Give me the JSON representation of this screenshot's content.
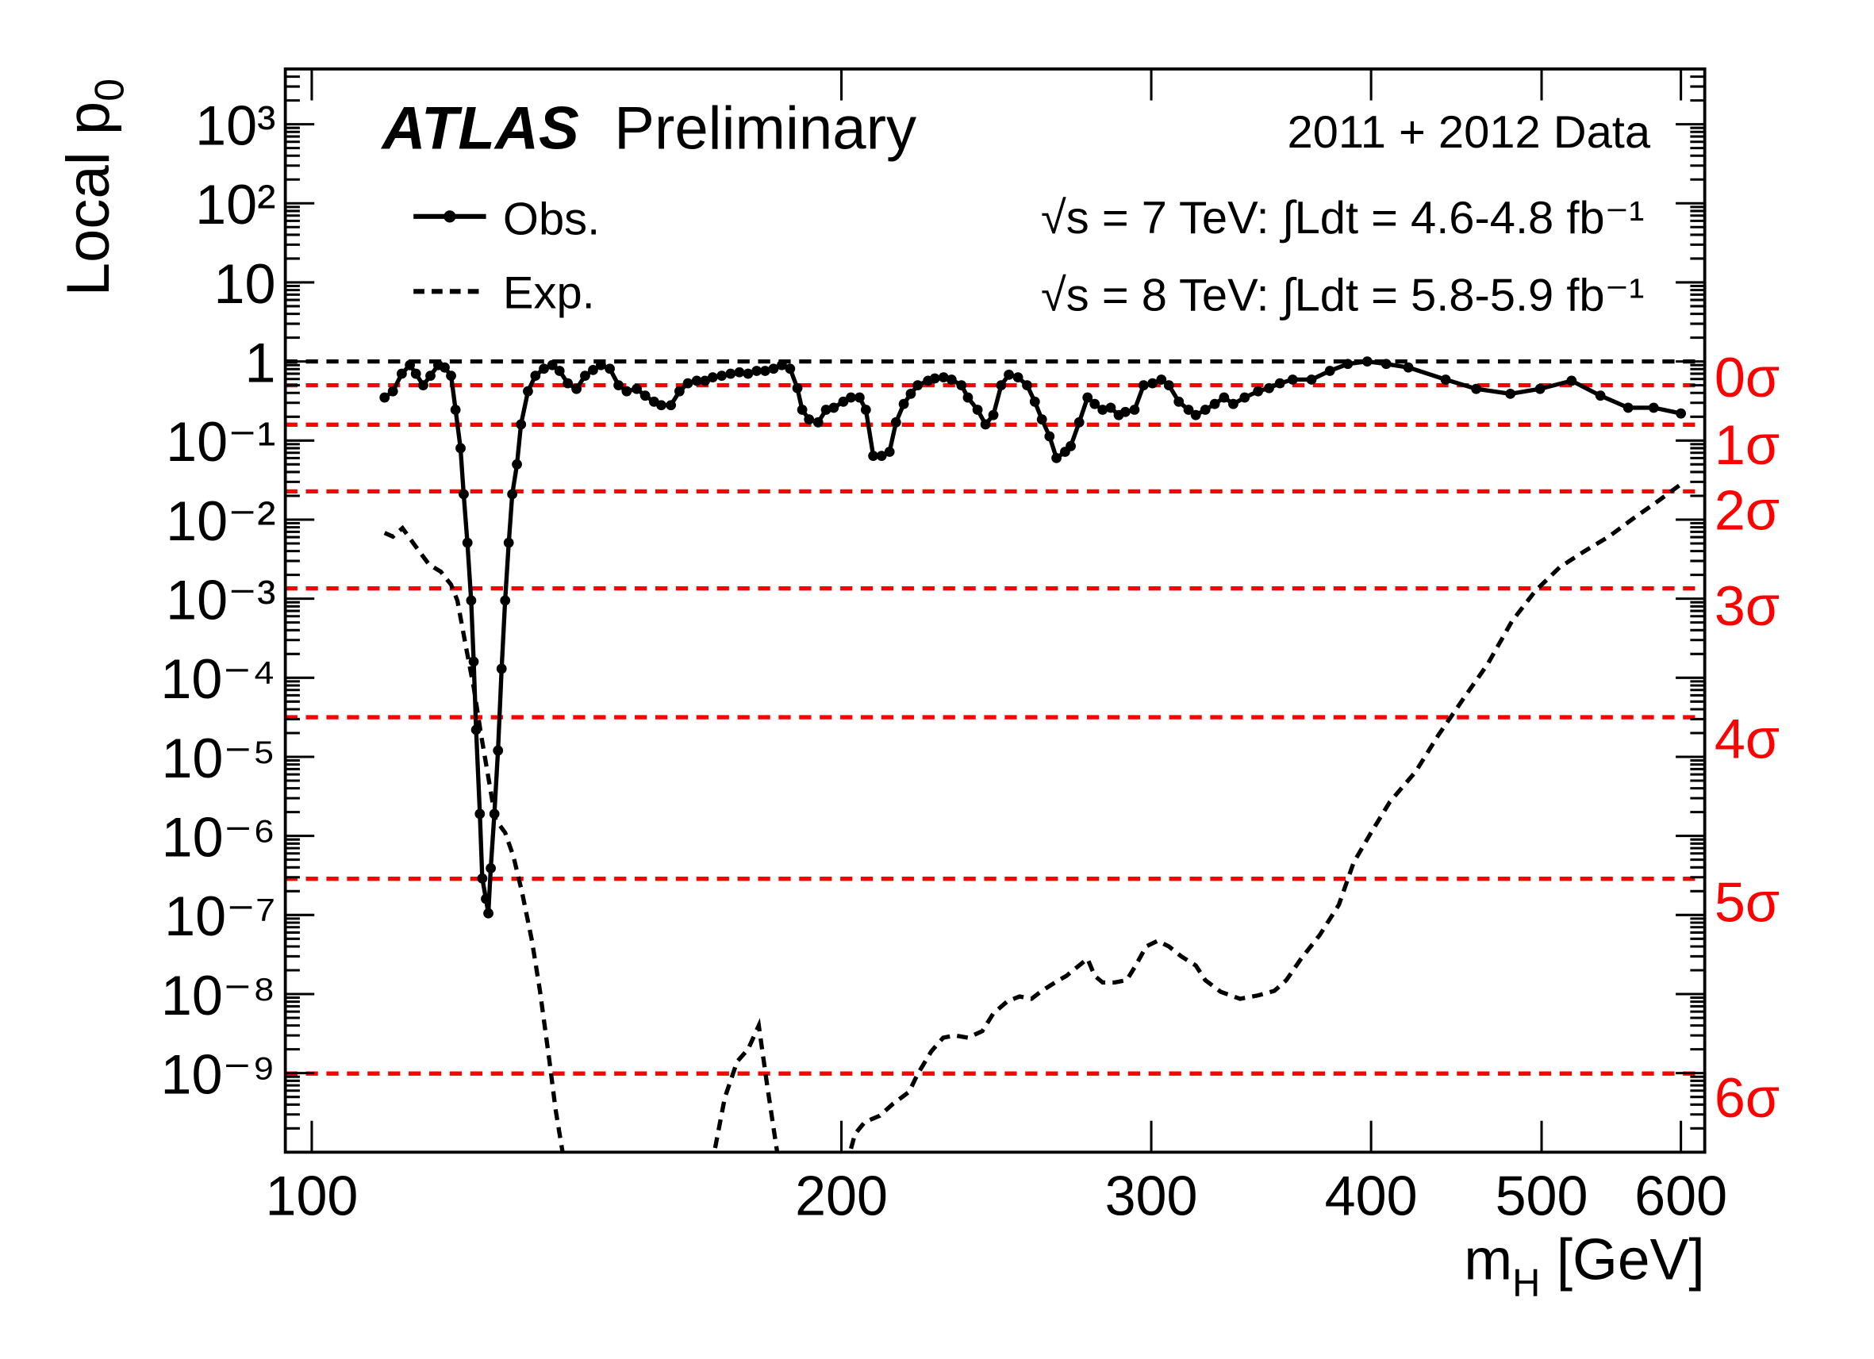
{
  "chart_data": {
    "type": "line",
    "title": "",
    "header": {
      "experiment": "ATLAS",
      "status": "Preliminary",
      "dataset": "2011 + 2012 Data",
      "lumi_7": "√s = 7 TeV: ∫Ldt = 4.6-4.8 fb⁻¹",
      "lumi_8": "√s = 8 TeV: ∫Ldt = 5.8-5.9 fb⁻¹"
    },
    "xlabel": "m_H [GeV]",
    "xlabel_main": "m",
    "xlabel_sub": "H",
    "xlabel_unit": " [GeV]",
    "ylabel_main": "Local p",
    "ylabel_sub": "0",
    "xscale": "log",
    "yscale": "log",
    "xlim": [
      96.6,
      619
    ],
    "ylim": [
      1e-10,
      5000
    ],
    "grid": false,
    "legend_placement": "top-left",
    "x_ticks": [
      100,
      200,
      300,
      400,
      500,
      600
    ],
    "x_tick_labels": [
      "100",
      "200",
      "300",
      "400",
      "500",
      "600"
    ],
    "y_ticks": [
      1000,
      100,
      10,
      1,
      0.1,
      0.01,
      0.001,
      0.0001,
      1e-05,
      1e-06,
      1e-07,
      1e-08,
      1e-09
    ],
    "y_tick_labels": [
      "10³",
      "10²",
      "10",
      "1",
      "10⁻¹",
      "10⁻²",
      "10⁻³",
      "10⁻⁴",
      "10⁻⁵",
      "10⁻⁶",
      "10⁻⁷",
      "10⁻⁸",
      "10⁻⁹"
    ],
    "reference_lines": [
      {
        "label": "",
        "p": 1,
        "color": "#000000"
      },
      {
        "label": "0σ",
        "p": 0.5,
        "color": "#ff0000"
      },
      {
        "label": "1σ",
        "p": 0.1587,
        "color": "#ff0000"
      },
      {
        "label": "2σ",
        "p": 0.02275,
        "color": "#ff0000"
      },
      {
        "label": "3σ",
        "p": 0.00135,
        "color": "#ff0000"
      },
      {
        "label": "4σ",
        "p": 3.17e-05,
        "color": "#ff0000"
      },
      {
        "label": "5σ",
        "p": 2.87e-07,
        "color": "#ff0000"
      },
      {
        "label": "6σ",
        "p": 9.87e-10,
        "color": "#ff0000"
      }
    ],
    "series": [
      {
        "name": "Obs.",
        "style": "solid-markers",
        "color": "#000000",
        "x": [
          110,
          111.2,
          112.5,
          113.7,
          114.6,
          115.7,
          116.8,
          118,
          119,
          120,
          120.7,
          121.5,
          122,
          122.6,
          123.2,
          123.6,
          124,
          124.6,
          125,
          125.6,
          126,
          126.4,
          127,
          127.6,
          128.2,
          128.8,
          129.4,
          130,
          130.8,
          131.5,
          132.7,
          134,
          135.5,
          137,
          138.3,
          139.8,
          141.4,
          143,
          144.5,
          146,
          147.7,
          149.4,
          151,
          153,
          154.7,
          156.5,
          158,
          160,
          161.8,
          163.6,
          165.5,
          167.3,
          169,
          171,
          173,
          175,
          177,
          179,
          181,
          183,
          185,
          187,
          188.8,
          190,
          191.7,
          194,
          196,
          198,
          200.5,
          202.5,
          204.8,
          206.5,
          208.5,
          210.8,
          213,
          214.8,
          217,
          219,
          221,
          224,
          226,
          228.6,
          231,
          234,
          236,
          239,
          241.5,
          244,
          246.5,
          249,
          252,
          255,
          257.6,
          260,
          262.6,
          265,
          268,
          270,
          273,
          276,
          278.6,
          281.5,
          284.5,
          287.5,
          290,
          293.5,
          297,
          300.5,
          304,
          307,
          311,
          315,
          318,
          322,
          326,
          330,
          334,
          339,
          345,
          350,
          355,
          361,
          370,
          379,
          388,
          398,
          408,
          420,
          441,
          459,
          480,
          499,
          520,
          540,
          560,
          579,
          600
        ],
        "y": [
          0.35,
          0.42,
          0.7,
          0.9,
          0.7,
          0.5,
          0.66,
          0.9,
          0.84,
          0.66,
          0.245,
          0.08,
          0.021,
          0.0051,
          0.00095,
          0.00016,
          2.2e-05,
          1.9e-06,
          2.9e-07,
          1.6e-07,
          1.05e-07,
          3.9e-07,
          1.9e-06,
          1.2e-05,
          0.00013,
          0.00095,
          0.0051,
          0.021,
          0.05,
          0.16,
          0.42,
          0.66,
          0.81,
          0.9,
          0.76,
          0.53,
          0.45,
          0.66,
          0.78,
          0.9,
          0.81,
          0.5,
          0.42,
          0.45,
          0.37,
          0.31,
          0.28,
          0.28,
          0.42,
          0.53,
          0.57,
          0.57,
          0.63,
          0.66,
          0.7,
          0.73,
          0.7,
          0.76,
          0.76,
          0.81,
          0.9,
          0.81,
          0.46,
          0.245,
          0.185,
          0.17,
          0.245,
          0.26,
          0.31,
          0.35,
          0.35,
          0.245,
          0.064,
          0.064,
          0.072,
          0.17,
          0.29,
          0.39,
          0.5,
          0.57,
          0.61,
          0.63,
          0.59,
          0.5,
          0.35,
          0.245,
          0.16,
          0.21,
          0.5,
          0.68,
          0.63,
          0.5,
          0.31,
          0.185,
          0.113,
          0.06,
          0.072,
          0.085,
          0.17,
          0.35,
          0.29,
          0.245,
          0.26,
          0.21,
          0.23,
          0.245,
          0.5,
          0.53,
          0.59,
          0.5,
          0.31,
          0.245,
          0.21,
          0.245,
          0.29,
          0.35,
          0.29,
          0.35,
          0.42,
          0.46,
          0.53,
          0.59,
          0.59,
          0.76,
          0.93,
          1.0,
          0.93,
          0.84,
          0.59,
          0.45,
          0.39,
          0.45,
          0.57,
          0.37,
          0.26,
          0.26,
          0.22
        ]
      },
      {
        "name": "Exp.",
        "style": "dashed",
        "color": "#000000",
        "segments": [
          {
            "x": [
              110,
              111.2,
              112.6,
              114.8,
              116.6,
              118.4,
              120,
              121,
              122.3,
              123.6,
              124.8,
              126.2,
              127.2,
              128.8,
              130.2,
              131.7,
              133.4,
              134.8,
              136.5,
              137.6,
              139.8
            ],
            "y": [
              0.0068,
              0.0061,
              0.0078,
              0.0043,
              0.0027,
              0.0022,
              0.0015,
              0.00095,
              0.00026,
              7.6e-05,
              1.9e-05,
              4.5e-06,
              1.6e-06,
              1.1e-06,
              5.5e-07,
              1.9e-07,
              4.7e-08,
              1.1e-08,
              1.4e-09,
              3.4e-10,
              4e-11
            ]
          },
          {
            "x": [
              168,
              171.7,
              174.5,
              177,
              179.5,
              181.5,
              185
            ],
            "y": [
              4e-11,
              4.9e-10,
              1.4e-09,
              2e-09,
              4e-09,
              6.9e-10,
              4e-11
            ]
          },
          {
            "x": [
              200,
              203.6,
              206.2,
              210.3,
              214,
              218.5,
              221,
              225,
              228.5,
              232,
              236,
              240.5,
              244,
              248.5,
              252.5,
              256.5,
              260,
              264.5,
              268.5,
              273,
              276,
              278.6,
              281.5,
              286,
              290.5,
              294,
              298,
              302.5,
              307,
              312,
              318,
              322,
              328.5,
              337,
              345,
              352.5,
              358,
              365,
              374,
              383.5,
              391,
              400,
              410,
              424,
              437,
              451,
              466,
              481,
              496,
              512,
              529,
              546,
              564,
              583,
              600
            ],
            "y": [
              4e-11,
              1.7e-10,
              2.4e-10,
              2.9e-10,
              4.1e-10,
              5.8e-10,
              9.8e-10,
              1.9e-09,
              2.8e-09,
              3e-09,
              2.8e-09,
              3.4e-09,
              5.7e-09,
              8.1e-09,
              9.3e-09,
              8.7e-09,
              1.1e-08,
              1.4e-08,
              1.7e-08,
              2.3e-08,
              2.8e-08,
              1.7e-08,
              1.4e-08,
              1.4e-08,
              1.5e-08,
              2.3e-08,
              4e-08,
              4.7e-08,
              4e-08,
              3e-08,
              2.3e-08,
              1.5e-08,
              1.07e-08,
              8.7e-09,
              9.6e-09,
              1.1e-08,
              1.5e-08,
              2.8e-08,
              5.6e-08,
              1.35e-07,
              4.6e-07,
              1.1e-06,
              2.7e-06,
              6.5e-06,
              1.9e-05,
              5.3e-05,
              0.00015,
              0.00052,
              0.00126,
              0.0025,
              0.004,
              0.0061,
              0.0104,
              0.0175,
              0.028
            ]
          }
        ]
      }
    ]
  }
}
